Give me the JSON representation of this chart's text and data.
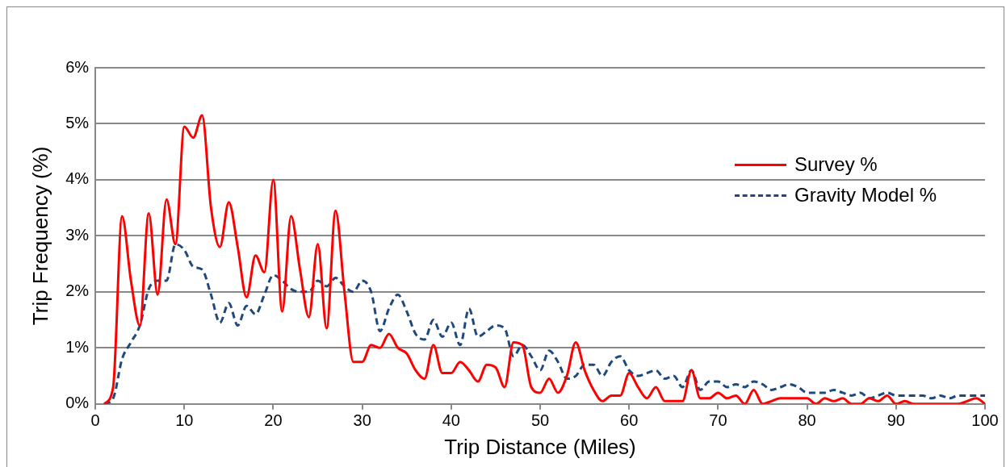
{
  "chart_data": {
    "type": "line",
    "xlabel": "Trip Distance (Miles)",
    "ylabel": "Trip Frequency (%)",
    "x": [
      1,
      2,
      3,
      4,
      5,
      6,
      7,
      8,
      9,
      10,
      11,
      12,
      13,
      14,
      15,
      16,
      17,
      18,
      19,
      20,
      21,
      22,
      23,
      24,
      25,
      26,
      27,
      28,
      29,
      30,
      31,
      32,
      33,
      34,
      35,
      36,
      37,
      38,
      39,
      40,
      41,
      42,
      43,
      44,
      45,
      46,
      47,
      48,
      49,
      50,
      51,
      52,
      53,
      54,
      55,
      56,
      57,
      58,
      59,
      60,
      61,
      62,
      63,
      64,
      65,
      66,
      67,
      68,
      69,
      70,
      71,
      72,
      73,
      74,
      75,
      76,
      77,
      78,
      79,
      80,
      81,
      82,
      83,
      84,
      85,
      86,
      87,
      88,
      89,
      90,
      91,
      92,
      93,
      94,
      95,
      96,
      97,
      98,
      99,
      100
    ],
    "series": [
      {
        "name": "Survey %",
        "color": "#ff0000",
        "line_style": "solid",
        "values": [
          0,
          0.3,
          3.35,
          2.2,
          1.4,
          3.4,
          1.95,
          3.65,
          2.85,
          4.95,
          4.75,
          5.15,
          3.5,
          2.8,
          3.6,
          2.8,
          1.9,
          2.65,
          2.35,
          4.0,
          1.65,
          3.35,
          2.4,
          1.55,
          2.85,
          1.35,
          3.45,
          2.0,
          0.75,
          0.75,
          1.05,
          1.0,
          1.25,
          1.0,
          0.9,
          0.6,
          0.45,
          1.05,
          0.55,
          0.55,
          0.75,
          0.6,
          0.4,
          0.7,
          0.65,
          0.3,
          1.1,
          1.05,
          0.3,
          0.2,
          0.45,
          0.2,
          0.5,
          1.1,
          0.6,
          0.25,
          0.05,
          0.15,
          0.15,
          0.55,
          0.3,
          0.1,
          0.3,
          0.05,
          0.05,
          0.05,
          0.6,
          0.1,
          0.1,
          0.2,
          0.1,
          0.15,
          0,
          0.25,
          0,
          0.05,
          0.1,
          0.1,
          0.1,
          0.1,
          0,
          0.1,
          0.05,
          0.1,
          0,
          0,
          0.1,
          0.05,
          0.15,
          0,
          0.05,
          0,
          0,
          0,
          0,
          0,
          0,
          0.05,
          0.1,
          0
        ]
      },
      {
        "name": "Gravity Model %",
        "color": "#1f497d",
        "line_style": "dashed",
        "values": [
          0,
          0.1,
          0.8,
          1.1,
          1.4,
          2.05,
          2.2,
          2.2,
          2.85,
          2.75,
          2.45,
          2.4,
          1.95,
          1.45,
          1.8,
          1.4,
          1.75,
          1.6,
          1.95,
          2.3,
          2.2,
          2.05,
          2.0,
          2.0,
          2.2,
          2.1,
          2.25,
          2.1,
          2.0,
          2.2,
          2.0,
          1.3,
          1.7,
          1.95,
          1.65,
          1.25,
          1.15,
          1.5,
          1.2,
          1.45,
          1.05,
          1.7,
          1.2,
          1.3,
          1.4,
          1.35,
          0.85,
          1.05,
          0.85,
          0.6,
          0.95,
          0.75,
          0.45,
          0.5,
          0.7,
          0.7,
          0.5,
          0.75,
          0.85,
          0.6,
          0.5,
          0.55,
          0.6,
          0.45,
          0.5,
          0.3,
          0.6,
          0.25,
          0.4,
          0.4,
          0.3,
          0.35,
          0.3,
          0.4,
          0.35,
          0.25,
          0.3,
          0.35,
          0.3,
          0.2,
          0.2,
          0.2,
          0.25,
          0.2,
          0.15,
          0.2,
          0.1,
          0.15,
          0.2,
          0.15,
          0.15,
          0.15,
          0.15,
          0.1,
          0.15,
          0.1,
          0.15,
          0.15,
          0.15,
          0.15
        ]
      }
    ],
    "xlim": [
      0,
      100
    ],
    "xticks": [
      0,
      10,
      20,
      30,
      40,
      50,
      60,
      70,
      80,
      90,
      100
    ],
    "ylim": [
      0,
      6
    ],
    "yticks": [
      {
        "value": 0,
        "label": "0%"
      },
      {
        "value": 1,
        "label": "1%"
      },
      {
        "value": 2,
        "label": "2%"
      },
      {
        "value": 3,
        "label": "3%"
      },
      {
        "value": 4,
        "label": "4%"
      },
      {
        "value": 5,
        "label": "5%"
      },
      {
        "value": 6,
        "label": "6%"
      }
    ],
    "grid": "y",
    "legend": "top right",
    "marker": "none"
  }
}
